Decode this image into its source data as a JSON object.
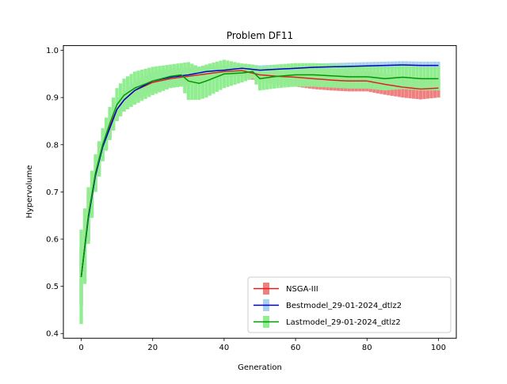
{
  "chart_data": {
    "type": "line",
    "title": "Problem DF11",
    "xlabel": "Generation",
    "ylabel": "Hypervolume",
    "xlim": [
      -5,
      105
    ],
    "ylim": [
      0.39,
      1.01
    ],
    "xticks": [
      0,
      20,
      40,
      60,
      80,
      100
    ],
    "yticks": [
      0.4,
      0.5,
      0.6,
      0.7,
      0.8,
      0.9,
      1.0
    ],
    "xtick_labels": [
      "0",
      "20",
      "40",
      "60",
      "80",
      "100"
    ],
    "ytick_labels": [
      "0.4",
      "0.5",
      "0.6",
      "0.7",
      "0.8",
      "0.9",
      "1.0"
    ],
    "grid": false,
    "legend_position": "lower-right",
    "series": [
      {
        "name": "NSGA-III",
        "line_color": "#e02020",
        "band_color": "#f08080",
        "knots": [
          [
            0,
            0.52,
            0.06
          ],
          [
            2,
            0.65,
            0.05
          ],
          [
            4,
            0.74,
            0.035
          ],
          [
            6,
            0.8,
            0.03
          ],
          [
            8,
            0.84,
            0.025
          ],
          [
            10,
            0.875,
            0.025
          ],
          [
            12,
            0.895,
            0.02
          ],
          [
            15,
            0.915,
            0.02
          ],
          [
            20,
            0.932,
            0.02
          ],
          [
            25,
            0.94,
            0.018
          ],
          [
            30,
            0.945,
            0.018
          ],
          [
            35,
            0.95,
            0.015
          ],
          [
            40,
            0.955,
            0.012
          ],
          [
            45,
            0.957,
            0.012
          ],
          [
            50,
            0.948,
            0.015
          ],
          [
            55,
            0.945,
            0.018
          ],
          [
            60,
            0.943,
            0.02
          ],
          [
            65,
            0.94,
            0.022
          ],
          [
            70,
            0.937,
            0.022
          ],
          [
            75,
            0.935,
            0.022
          ],
          [
            80,
            0.935,
            0.022
          ],
          [
            85,
            0.928,
            0.022
          ],
          [
            90,
            0.922,
            0.022
          ],
          [
            95,
            0.918,
            0.022
          ],
          [
            100,
            0.92,
            0.02
          ]
        ]
      },
      {
        "name": "Bestmodel_29-01-2024_dtlz2",
        "line_color": "#0000cc",
        "band_color": "#a8d0f0",
        "knots": [
          [
            0,
            0.52,
            0.06
          ],
          [
            2,
            0.645,
            0.05
          ],
          [
            4,
            0.735,
            0.035
          ],
          [
            6,
            0.795,
            0.03
          ],
          [
            8,
            0.835,
            0.025
          ],
          [
            10,
            0.875,
            0.025
          ],
          [
            12,
            0.895,
            0.02
          ],
          [
            15,
            0.915,
            0.02
          ],
          [
            20,
            0.935,
            0.02
          ],
          [
            25,
            0.943,
            0.018
          ],
          [
            30,
            0.948,
            0.015
          ],
          [
            35,
            0.955,
            0.012
          ],
          [
            40,
            0.958,
            0.012
          ],
          [
            45,
            0.962,
            0.01
          ],
          [
            50,
            0.958,
            0.01
          ],
          [
            55,
            0.96,
            0.01
          ],
          [
            60,
            0.962,
            0.008
          ],
          [
            65,
            0.964,
            0.008
          ],
          [
            70,
            0.965,
            0.008
          ],
          [
            75,
            0.966,
            0.008
          ],
          [
            80,
            0.967,
            0.008
          ],
          [
            85,
            0.968,
            0.008
          ],
          [
            90,
            0.969,
            0.008
          ],
          [
            95,
            0.968,
            0.008
          ],
          [
            100,
            0.968,
            0.008
          ]
        ]
      },
      {
        "name": "Lastmodel_29-01-2024_dtlz2",
        "line_color": "#009900",
        "band_color": "#90ee90",
        "knots": [
          [
            0,
            0.52,
            0.1
          ],
          [
            2,
            0.65,
            0.06
          ],
          [
            4,
            0.74,
            0.04
          ],
          [
            6,
            0.8,
            0.035
          ],
          [
            8,
            0.845,
            0.035
          ],
          [
            10,
            0.885,
            0.035
          ],
          [
            12,
            0.905,
            0.035
          ],
          [
            15,
            0.92,
            0.035
          ],
          [
            20,
            0.935,
            0.03
          ],
          [
            25,
            0.945,
            0.025
          ],
          [
            28,
            0.948,
            0.025
          ],
          [
            30,
            0.935,
            0.04
          ],
          [
            33,
            0.93,
            0.035
          ],
          [
            35,
            0.935,
            0.035
          ],
          [
            40,
            0.95,
            0.03
          ],
          [
            45,
            0.952,
            0.02
          ],
          [
            48,
            0.955,
            0.015
          ],
          [
            50,
            0.94,
            0.025
          ],
          [
            55,
            0.945,
            0.025
          ],
          [
            60,
            0.948,
            0.025
          ],
          [
            65,
            0.948,
            0.025
          ],
          [
            70,
            0.946,
            0.025
          ],
          [
            75,
            0.944,
            0.025
          ],
          [
            80,
            0.944,
            0.025
          ],
          [
            85,
            0.94,
            0.025
          ],
          [
            90,
            0.943,
            0.025
          ],
          [
            95,
            0.94,
            0.025
          ],
          [
            100,
            0.94,
            0.025
          ]
        ]
      }
    ]
  }
}
